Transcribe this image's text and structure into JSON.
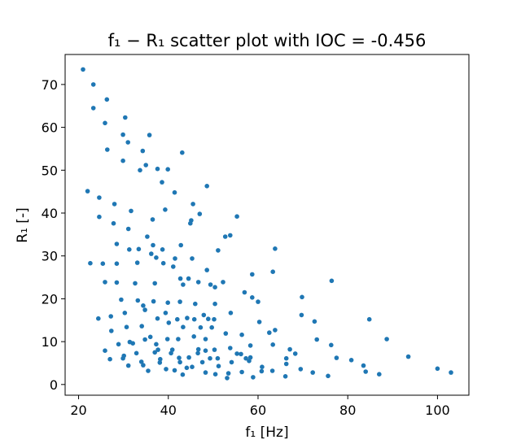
{
  "chart_data": {
    "type": "scatter",
    "title": "f₁ − R₁ scatter plot with IOC = -0.456",
    "xlabel": "f₁ [Hz]",
    "ylabel": "R₁ [-]",
    "xlim": [
      17,
      107
    ],
    "ylim": [
      -2.5,
      77
    ],
    "xticks": [
      20,
      40,
      60,
      80,
      100
    ],
    "yticks": [
      0,
      10,
      20,
      30,
      40,
      50,
      60,
      70
    ],
    "xtick_labels": [
      "20",
      "40",
      "60",
      "80",
      "100"
    ],
    "ytick_labels": [
      "0",
      "10",
      "20",
      "30",
      "40",
      "50",
      "60",
      "70"
    ],
    "grid": false,
    "point_color": "#1f77b4",
    "points": [
      [
        21,
        73.5
      ],
      [
        23.3,
        70
      ],
      [
        23.3,
        64.5
      ],
      [
        26.3,
        66.5
      ],
      [
        25.9,
        61
      ],
      [
        30.4,
        62.3
      ],
      [
        26.4,
        54.8
      ],
      [
        29.9,
        58.3
      ],
      [
        31,
        56.5
      ],
      [
        35.8,
        58.2
      ],
      [
        34.3,
        54.5
      ],
      [
        35,
        51.2
      ],
      [
        29.9,
        52.2
      ],
      [
        33.7,
        50
      ],
      [
        37.6,
        50.3
      ],
      [
        39.9,
        50.2
      ],
      [
        43.1,
        54.1
      ],
      [
        38.6,
        47.2
      ],
      [
        41.4,
        44.8
      ],
      [
        48.6,
        46.3
      ],
      [
        22,
        45.1
      ],
      [
        24.6,
        43.6
      ],
      [
        28,
        42.1
      ],
      [
        31.7,
        40.5
      ],
      [
        39.3,
        40.8
      ],
      [
        45.5,
        42.1
      ],
      [
        47,
        39.8
      ],
      [
        45.1,
        38.3
      ],
      [
        44.9,
        37.6
      ],
      [
        55.3,
        39.2
      ],
      [
        24.6,
        39.1
      ],
      [
        27.8,
        37.6
      ],
      [
        31.1,
        36.3
      ],
      [
        36.5,
        38.5
      ],
      [
        35.3,
        34.5
      ],
      [
        42.8,
        32.5
      ],
      [
        52.7,
        34.5
      ],
      [
        53.8,
        34.8
      ],
      [
        28.5,
        32.8
      ],
      [
        36.6,
        32.5
      ],
      [
        22.6,
        28.3
      ],
      [
        25.4,
        28.2
      ],
      [
        28.5,
        28.2
      ],
      [
        31.3,
        31.5
      ],
      [
        33.4,
        31.6
      ],
      [
        36.2,
        30.5
      ],
      [
        38.7,
        31.5
      ],
      [
        37.3,
        29.6
      ],
      [
        38.9,
        28.3
      ],
      [
        41.5,
        29.4
      ],
      [
        41.1,
        27.5
      ],
      [
        45.3,
        29.4
      ],
      [
        51.1,
        31.3
      ],
      [
        58.7,
        25.7
      ],
      [
        63.8,
        31.7
      ],
      [
        63.3,
        26.3
      ],
      [
        48.6,
        26.7
      ],
      [
        33.1,
        28.4
      ],
      [
        42.7,
        24.7
      ],
      [
        44.5,
        24.7
      ],
      [
        25.9,
        23.9
      ],
      [
        28.5,
        23.8
      ],
      [
        32.6,
        23.6
      ],
      [
        37,
        23.6
      ],
      [
        43.3,
        23.3
      ],
      [
        46.7,
        23.9
      ],
      [
        49.4,
        23.3
      ],
      [
        50.4,
        22.7
      ],
      [
        52.2,
        23.9
      ],
      [
        57,
        21.5
      ],
      [
        58.7,
        20.3
      ],
      [
        60,
        19.3
      ],
      [
        69.8,
        20.4
      ],
      [
        76.4,
        24.2
      ],
      [
        29.5,
        19.8
      ],
      [
        33.2,
        19.6
      ],
      [
        36.7,
        19.4
      ],
      [
        39.9,
        19.1
      ],
      [
        42.6,
        19.3
      ],
      [
        46,
        18.8
      ],
      [
        50.4,
        18.8
      ],
      [
        34.4,
        18.4
      ],
      [
        30.3,
        16.7
      ],
      [
        34.8,
        17.4
      ],
      [
        39.4,
        16.7
      ],
      [
        47.9,
        16.2
      ],
      [
        53.9,
        16.7
      ],
      [
        69.7,
        16.2
      ],
      [
        72.6,
        14.7
      ],
      [
        84.8,
        15.2
      ],
      [
        24.4,
        15.4
      ],
      [
        27.2,
        15.9
      ],
      [
        37.6,
        15.4
      ],
      [
        42,
        15.2
      ],
      [
        44.2,
        15.5
      ],
      [
        45.8,
        15.2
      ],
      [
        48.9,
        15.3
      ],
      [
        50.2,
        15.2
      ],
      [
        60.3,
        14.6
      ],
      [
        34.1,
        13.6
      ],
      [
        30.7,
        13.4
      ],
      [
        40.1,
        14.4
      ],
      [
        43.3,
        13.4
      ],
      [
        47.2,
        13.3
      ],
      [
        49.7,
        13.3
      ],
      [
        52.8,
        11.9
      ],
      [
        56.4,
        11.6
      ],
      [
        62.5,
        12.1
      ],
      [
        63.8,
        12.7
      ],
      [
        73.1,
        10.5
      ],
      [
        27.3,
        12.5
      ],
      [
        34.8,
        10.5
      ],
      [
        36,
        11.1
      ],
      [
        39.8,
        10.6
      ],
      [
        42.2,
        10.6
      ],
      [
        45.7,
        11.2
      ],
      [
        48.3,
        10.6
      ],
      [
        53.8,
        8.5
      ],
      [
        58.3,
        9.1
      ],
      [
        63.3,
        9.3
      ],
      [
        76.3,
        9.2
      ],
      [
        88.7,
        10.6
      ],
      [
        28.9,
        9.4
      ],
      [
        31.4,
        9.9
      ],
      [
        32.1,
        9.6
      ],
      [
        37.3,
        9.4
      ],
      [
        37.7,
        8.1
      ],
      [
        40.9,
        8.1
      ],
      [
        46.7,
        8.2
      ],
      [
        48.3,
        7.9
      ],
      [
        50.3,
        8.1
      ],
      [
        56.2,
        7.1
      ],
      [
        58.3,
        6.3
      ],
      [
        66.3,
        6.1
      ],
      [
        67.1,
        8.2
      ],
      [
        68.3,
        7.2
      ],
      [
        25.9,
        7.9
      ],
      [
        30.1,
        6.7
      ],
      [
        32.9,
        7.3
      ],
      [
        37,
        7.5
      ],
      [
        40.6,
        7.3
      ],
      [
        42.4,
        6.2
      ],
      [
        44.6,
        6.3
      ],
      [
        46.6,
        7.3
      ],
      [
        49.3,
        6.1
      ],
      [
        51,
        6.1
      ],
      [
        55.3,
        7.2
      ],
      [
        57.3,
        6.1
      ],
      [
        58,
        5.5
      ],
      [
        66.3,
        4.8
      ],
      [
        77.5,
        6.2
      ],
      [
        80.8,
        5.7
      ],
      [
        83.5,
        4.4
      ],
      [
        93.5,
        6.5
      ],
      [
        27,
        5.9
      ],
      [
        29.9,
        6.1
      ],
      [
        34,
        5.3
      ],
      [
        34.4,
        4.5
      ],
      [
        38.2,
        5.9
      ],
      [
        38.1,
        5.1
      ],
      [
        42.6,
        5.2
      ],
      [
        47.6,
        5.2
      ],
      [
        54.1,
        5.2
      ],
      [
        60.8,
        3.1
      ],
      [
        69.5,
        3.6
      ],
      [
        72.2,
        2.8
      ],
      [
        31.1,
        4.4
      ],
      [
        35.5,
        3.2
      ],
      [
        39.5,
        3.6
      ],
      [
        41.4,
        3.3
      ],
      [
        44.1,
        3.9
      ],
      [
        45.3,
        4.1
      ],
      [
        48.3,
        2.8
      ],
      [
        50.5,
        2.4
      ],
      [
        53.4,
        2.6
      ],
      [
        56.4,
        2.9
      ],
      [
        60.9,
        4.1
      ],
      [
        63.2,
        3.2
      ],
      [
        84,
        3
      ],
      [
        87,
        2.4
      ],
      [
        100,
        3.7
      ],
      [
        103,
        2.8
      ],
      [
        43.2,
        2.3
      ],
      [
        51.2,
        4.3
      ],
      [
        53.1,
        1.5
      ],
      [
        58.9,
        1.7
      ],
      [
        66.1,
        1.9
      ],
      [
        75.6,
        2
      ]
    ]
  }
}
